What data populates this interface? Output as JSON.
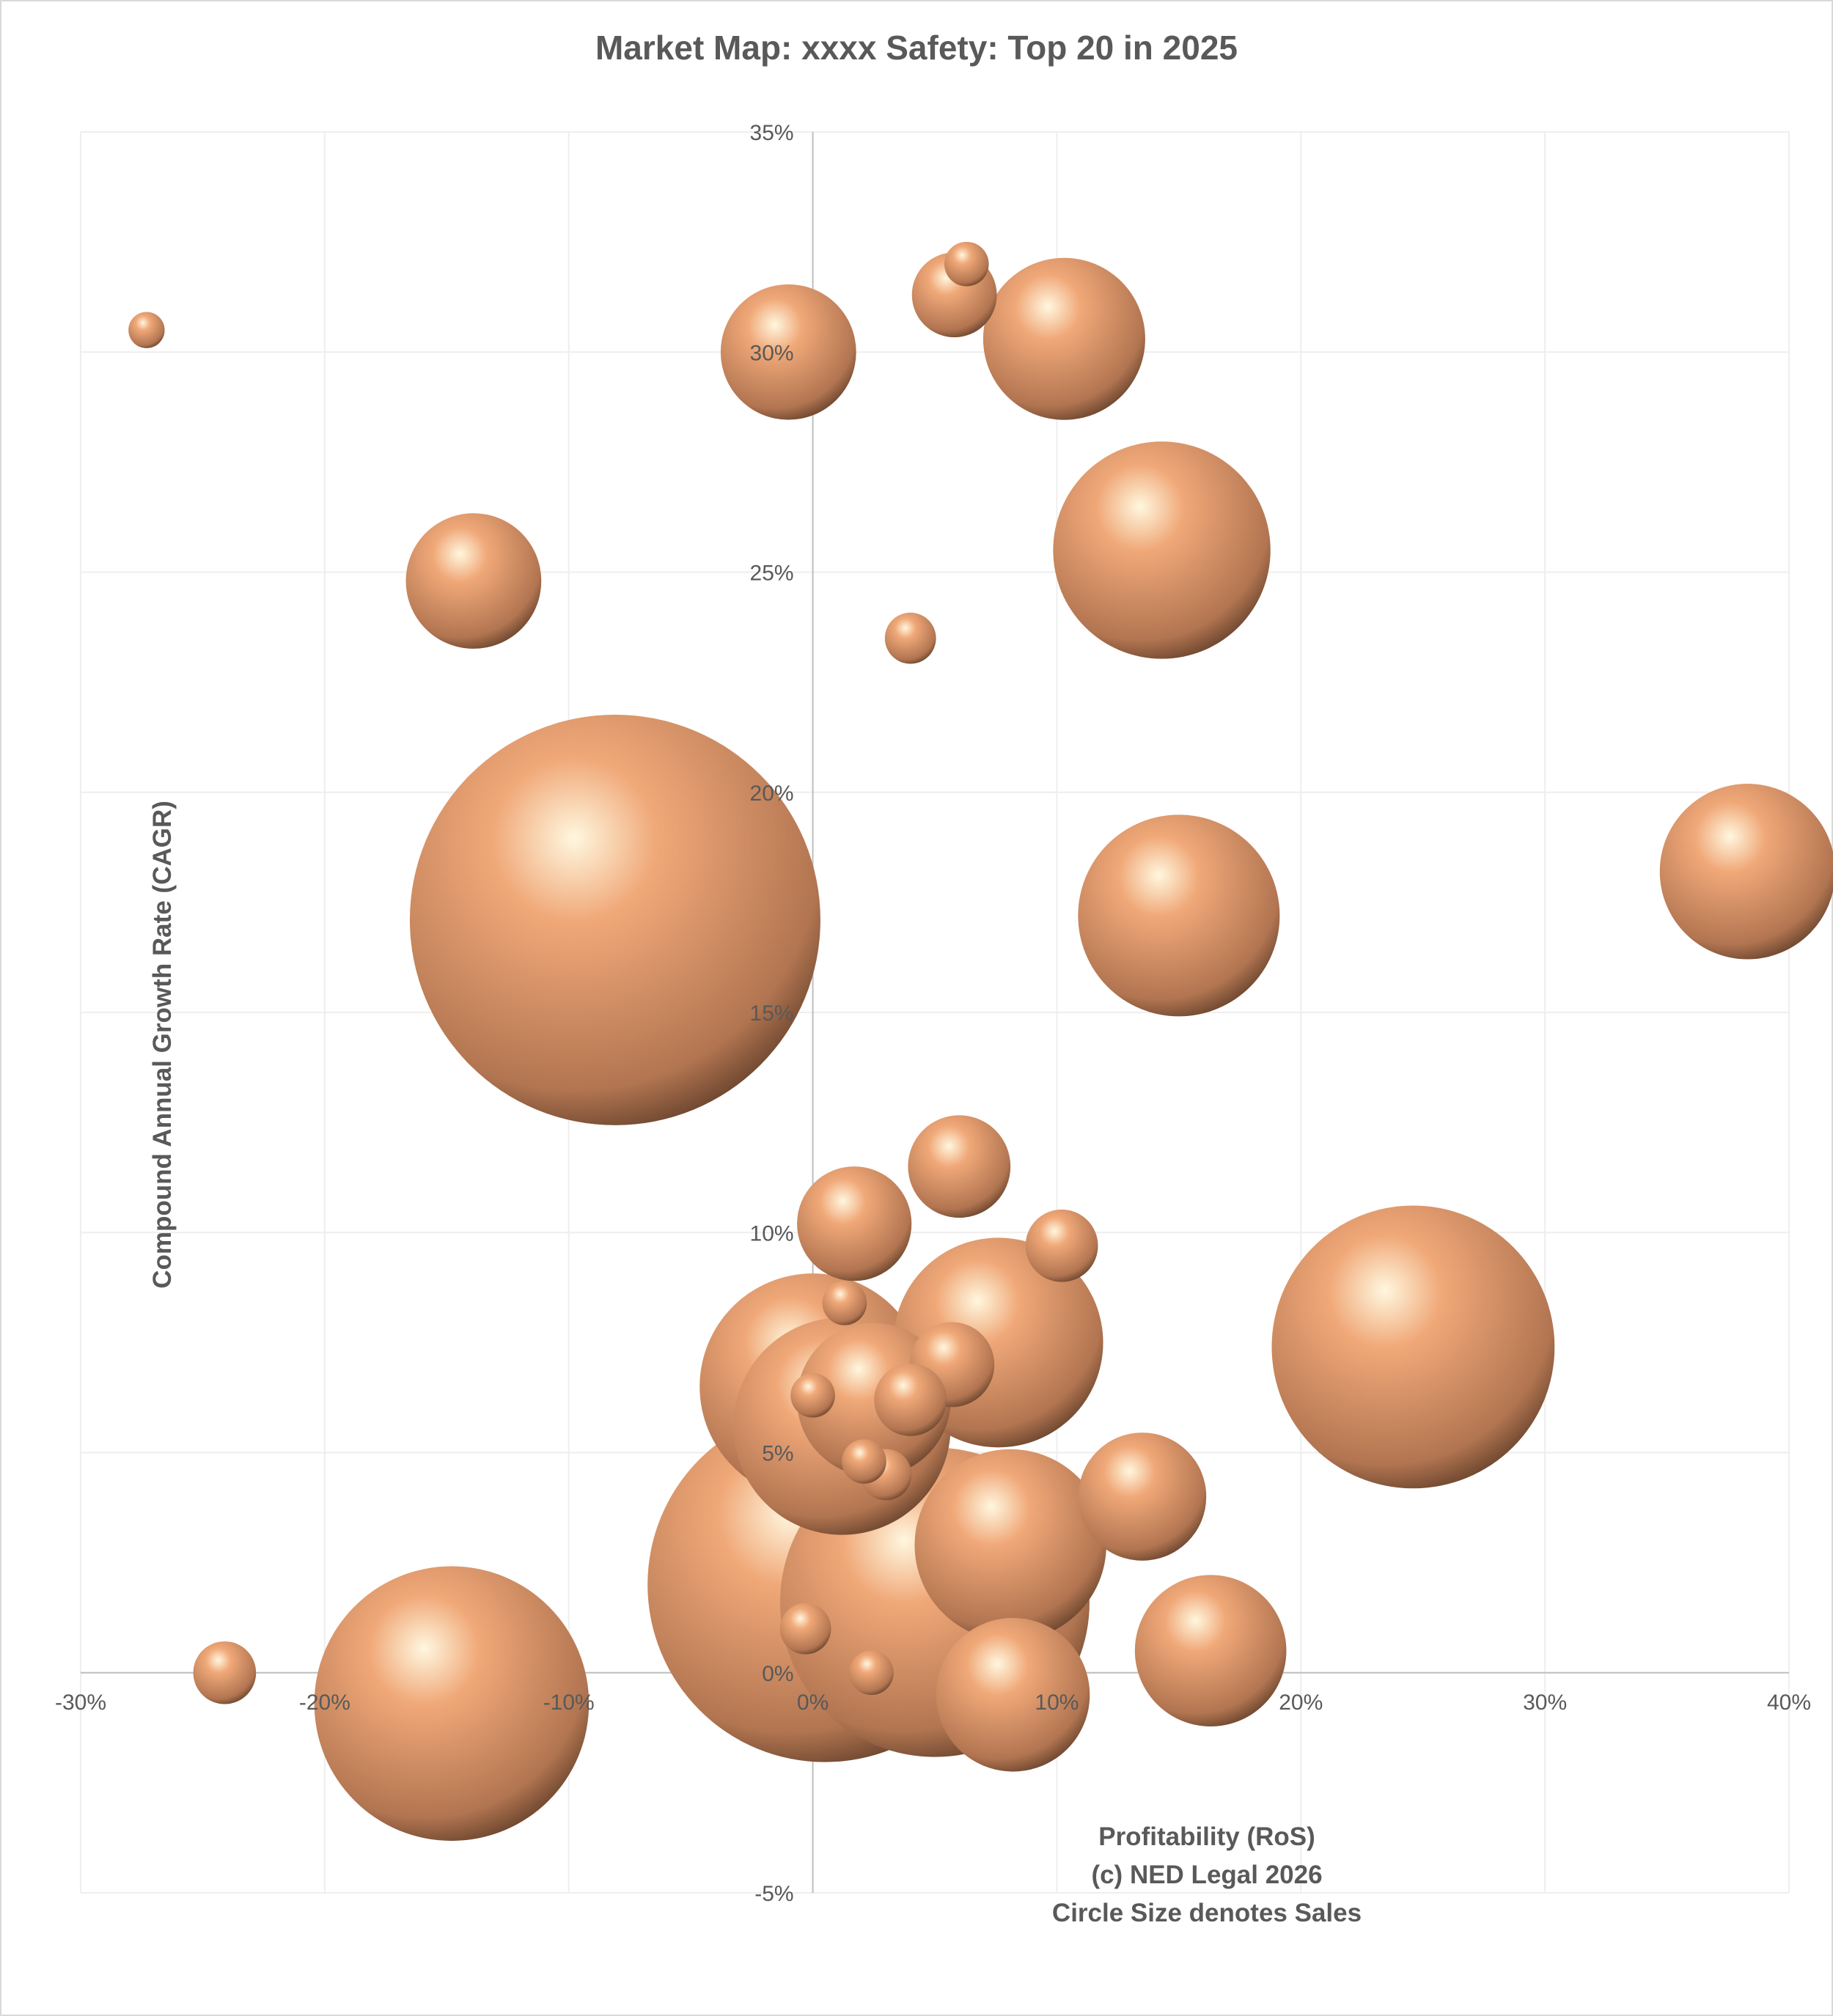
{
  "chart_data": {
    "type": "bubble",
    "title": "Market Map: xxxx Safety: Top 20 in 2025",
    "xlabel_lines": [
      "Profitability (RoS)",
      "(c) NED Legal 2026",
      "Circle Size denotes Sales"
    ],
    "ylabel": "Compound Annual Growth Rate (CAGR)",
    "xlim": [
      -30,
      40
    ],
    "ylim": [
      -5,
      35
    ],
    "x_ticks": [
      -30,
      -20,
      -10,
      0,
      10,
      20,
      30,
      40
    ],
    "y_ticks": [
      -5,
      0,
      5,
      10,
      15,
      20,
      25,
      30,
      35
    ],
    "x_tick_labels": [
      "-30%",
      "-20%",
      "-10%",
      "0%",
      "10%",
      "20%",
      "30%",
      "40%"
    ],
    "y_tick_labels": [
      "-5%",
      "0%",
      "5%",
      "10%",
      "15%",
      "20%",
      "25%",
      "30%",
      "35%"
    ],
    "grid": true,
    "bubble_color": "#f0a878",
    "bubble_highlight": "#fff7df",
    "bubble_shadow": "#3a2416",
    "points": [
      {
        "x": -27.3,
        "y": 30.5,
        "size": 0.2
      },
      {
        "x": -1.0,
        "y": 30.0,
        "size": 2.8
      },
      {
        "x": 5.8,
        "y": 31.3,
        "size": 1.1
      },
      {
        "x": 6.3,
        "y": 32.0,
        "size": 0.3
      },
      {
        "x": 10.3,
        "y": 30.3,
        "size": 4.0
      },
      {
        "x": -13.9,
        "y": 24.8,
        "size": 2.8
      },
      {
        "x": 14.3,
        "y": 25.5,
        "size": 7.2
      },
      {
        "x": 4.0,
        "y": 23.5,
        "size": 0.4
      },
      {
        "x": -8.1,
        "y": 17.1,
        "size": 25.7
      },
      {
        "x": 38.3,
        "y": 18.2,
        "size": 4.7
      },
      {
        "x": 15.0,
        "y": 17.2,
        "size": 6.2
      },
      {
        "x": 6.0,
        "y": 11.5,
        "size": 1.6
      },
      {
        "x": 1.7,
        "y": 10.2,
        "size": 2.0
      },
      {
        "x": 10.2,
        "y": 9.7,
        "size": 0.8
      },
      {
        "x": 7.6,
        "y": 7.5,
        "size": 6.7
      },
      {
        "x": 24.6,
        "y": 7.4,
        "size": 12.2
      },
      {
        "x": 0.0,
        "y": 6.5,
        "size": 7.8
      },
      {
        "x": 1.3,
        "y": 8.4,
        "size": 0.3
      },
      {
        "x": 2.5,
        "y": 6.2,
        "size": 3.6
      },
      {
        "x": 5.7,
        "y": 7.0,
        "size": 1.1
      },
      {
        "x": 1.2,
        "y": 5.6,
        "size": 7.2
      },
      {
        "x": 0.0,
        "y": 6.3,
        "size": 0.3
      },
      {
        "x": 4.0,
        "y": 6.2,
        "size": 0.8
      },
      {
        "x": 3.0,
        "y": 4.5,
        "size": 0.4
      },
      {
        "x": 2.1,
        "y": 4.8,
        "size": 0.3
      },
      {
        "x": 13.5,
        "y": 4.0,
        "size": 2.5
      },
      {
        "x": 0.5,
        "y": 2.0,
        "size": 19.2
      },
      {
        "x": 8.1,
        "y": 2.9,
        "size": 5.6
      },
      {
        "x": 5.0,
        "y": 1.6,
        "size": 14.6
      },
      {
        "x": -0.3,
        "y": 1.0,
        "size": 0.4
      },
      {
        "x": 2.4,
        "y": 0.0,
        "size": 0.3
      },
      {
        "x": 16.3,
        "y": 0.5,
        "size": 3.5
      },
      {
        "x": 8.2,
        "y": -0.5,
        "size": 3.6
      },
      {
        "x": -24.1,
        "y": 0.0,
        "size": 0.6
      },
      {
        "x": -14.8,
        "y": -0.7,
        "size": 11.5
      }
    ]
  }
}
